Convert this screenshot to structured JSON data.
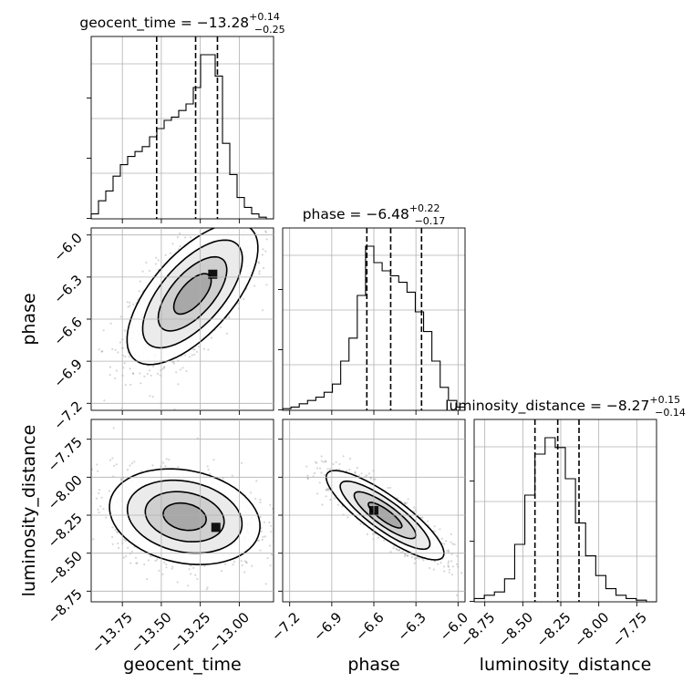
{
  "chart_data": {
    "type": "corner",
    "grid": true,
    "parameters": [
      {
        "name": "geocent_time",
        "title": "geocent_time = −13.28",
        "err_plus": "+0.14",
        "err_minus": "−0.25",
        "median": -13.28,
        "q_low": -13.53,
        "q_high": -13.14,
        "range": [
          -13.95,
          -12.78
        ],
        "ticks": [
          -13.75,
          -13.5,
          -13.25,
          -13.0
        ],
        "tick_labels": [
          "−13.75",
          "−13.50",
          "−13.25",
          "−13.00"
        ],
        "hist_counts": [
          0.03,
          0.11,
          0.17,
          0.26,
          0.33,
          0.38,
          0.41,
          0.44,
          0.5,
          0.55,
          0.6,
          0.62,
          0.66,
          0.7,
          0.8,
          1.0,
          1.0,
          0.87,
          0.46,
          0.27,
          0.13,
          0.07,
          0.03,
          0.01,
          0.0
        ]
      },
      {
        "name": "phase",
        "title": "phase = −6.48",
        "err_plus": "+0.22",
        "err_minus": "−0.17",
        "median": -6.48,
        "q_low": -6.65,
        "q_high": -6.26,
        "range": [
          -7.25,
          -5.95
        ],
        "ticks": [
          -7.2,
          -6.9,
          -6.6,
          -6.3,
          -6.0
        ],
        "tick_labels": [
          "−7.2",
          "−6.9",
          "−6.6",
          "−6.3",
          "−6.0"
        ],
        "hist_counts": [
          0.01,
          0.02,
          0.04,
          0.06,
          0.08,
          0.11,
          0.16,
          0.3,
          0.44,
          0.7,
          1.0,
          0.9,
          0.85,
          0.82,
          0.78,
          0.72,
          0.6,
          0.48,
          0.3,
          0.14,
          0.06,
          0.02
        ]
      },
      {
        "name": "luminosity_distance",
        "title": "luminosity_distance = −8.27",
        "err_plus": "+0.15",
        "err_minus": "−0.14",
        "median": -8.27,
        "q_low": -8.42,
        "q_high": -8.13,
        "range": [
          -8.82,
          -7.62
        ],
        "ticks": [
          -8.75,
          -8.5,
          -8.25,
          -8.0,
          -7.75
        ],
        "tick_labels": [
          "−8.75",
          "−8.50",
          "−8.25",
          "−8.00",
          "−7.75"
        ],
        "hist_counts": [
          0.02,
          0.04,
          0.06,
          0.14,
          0.35,
          0.65,
          0.9,
          1.0,
          0.94,
          0.75,
          0.48,
          0.28,
          0.16,
          0.08,
          0.04,
          0.02,
          0.01,
          0.0
        ]
      }
    ],
    "pairs": [
      {
        "row": 1,
        "col": 0,
        "mean": [
          -13.3,
          -6.42
        ],
        "sd": [
          0.2,
          0.24
        ],
        "rho": 0.65,
        "peak": [
          -13.17,
          -6.28
        ]
      },
      {
        "row": 2,
        "col": 0,
        "mean": [
          -13.35,
          -8.26
        ],
        "sd": [
          0.23,
          0.15
        ],
        "rho": -0.2,
        "peak": [
          -13.15,
          -8.33
        ]
      },
      {
        "row": 2,
        "col": 1,
        "mean": [
          -6.52,
          -8.25
        ],
        "sd": [
          0.2,
          0.14
        ],
        "rho": -0.85,
        "peak": [
          -6.6,
          -8.22
        ]
      }
    ]
  }
}
